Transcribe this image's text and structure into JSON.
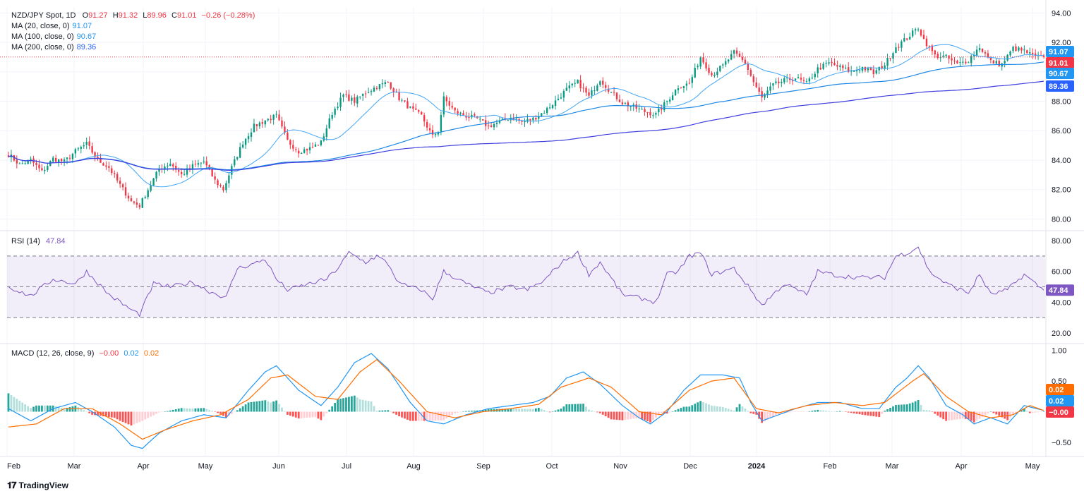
{
  "header": {
    "symbol": "NZD/JPY Spot, 1D",
    "o_label": "O",
    "o": "91.27",
    "h_label": "H",
    "h": "91.32",
    "l_label": "L",
    "l": "89.96",
    "c_label": "C",
    "c": "91.01",
    "change": "−0.26 (−0.28%)"
  },
  "ma_legend": [
    {
      "label": "MA (20, close, 0)",
      "value": "91.07",
      "color": "#2196f3"
    },
    {
      "label": "MA (100, close, 0)",
      "value": "90.67",
      "color": "#2196f3"
    },
    {
      "label": "MA (200, close, 0)",
      "value": "89.36",
      "color": "#2962ff"
    }
  ],
  "rsi_legend": {
    "label": "RSI (14)",
    "value": "47.84",
    "color": "#7e57c2"
  },
  "macd_legend": {
    "label": "MACD (12, 26, close, 9)",
    "hist": "−0.00",
    "macd": "0.02",
    "signal": "0.02",
    "hist_color": "#f23645",
    "macd_color": "#2196f3",
    "signal_color": "#ff6d00"
  },
  "branding": {
    "name": "TradingView"
  },
  "colors": {
    "up": "#089981",
    "down": "#f23645",
    "ma20": "#42a5f5",
    "ma100": "#1e88e5",
    "ma200": "#3f3fe0",
    "rsi": "#7e57c2",
    "macd": "#2196f3",
    "signal": "#ff6d00"
  },
  "chart_data": [
    {
      "type": "candlestick",
      "title": "NZD/JPY Spot, 1D",
      "x_ticks": [
        "Feb",
        "Mar",
        "Apr",
        "May",
        "Jun",
        "Jul",
        "Aug",
        "Sep",
        "Oct",
        "Nov",
        "Dec",
        "2024",
        "Feb",
        "Mar",
        "Apr",
        "May"
      ],
      "y_ticks": [
        "80.00",
        "82.00",
        "84.00",
        "86.00",
        "88.00",
        "90.00",
        "92.00",
        "94.00"
      ],
      "ylim": [
        79.3,
        94.4
      ],
      "last_close": 91.01,
      "price_labels": [
        {
          "text": "91.07",
          "value": 91.07,
          "color": "#2196f3"
        },
        {
          "text": "91.01",
          "value": 91.01,
          "color": "#f23645"
        },
        {
          "text": "90.67",
          "value": 90.67,
          "color": "#2196f3"
        },
        {
          "text": "89.36",
          "value": 89.36,
          "color": "#2962ff"
        }
      ],
      "close_path": [
        [
          0,
          84.4
        ],
        [
          4,
          83.7
        ],
        [
          8,
          84.0
        ],
        [
          12,
          83.2
        ],
        [
          16,
          84.1
        ],
        [
          20,
          83.9
        ],
        [
          24,
          84.6
        ],
        [
          28,
          85.1
        ],
        [
          32,
          84.0
        ],
        [
          36,
          83.5
        ],
        [
          40,
          82.3
        ],
        [
          44,
          81.2
        ],
        [
          47,
          80.9
        ],
        [
          50,
          82.0
        ],
        [
          54,
          83.4
        ],
        [
          58,
          83.8
        ],
        [
          62,
          83.0
        ],
        [
          66,
          83.6
        ],
        [
          70,
          83.9
        ],
        [
          74,
          82.6
        ],
        [
          77,
          82.0
        ],
        [
          80,
          83.5
        ],
        [
          84,
          85.2
        ],
        [
          88,
          86.3
        ],
        [
          92,
          86.7
        ],
        [
          96,
          87.0
        ],
        [
          100,
          85.3
        ],
        [
          104,
          84.6
        ],
        [
          108,
          84.8
        ],
        [
          112,
          85.2
        ],
        [
          116,
          87.2
        ],
        [
          120,
          88.4
        ],
        [
          124,
          88.0
        ],
        [
          128,
          88.6
        ],
        [
          132,
          89.0
        ],
        [
          136,
          89.3
        ],
        [
          140,
          88.2
        ],
        [
          144,
          87.5
        ],
        [
          148,
          87.0
        ],
        [
          152,
          85.6
        ],
        [
          154,
          86.0
        ],
        [
          156,
          88.2
        ],
        [
          160,
          87.3
        ],
        [
          164,
          87.0
        ],
        [
          168,
          86.8
        ],
        [
          172,
          86.3
        ],
        [
          176,
          86.6
        ],
        [
          180,
          86.9
        ],
        [
          184,
          86.6
        ],
        [
          188,
          86.8
        ],
        [
          192,
          87.3
        ],
        [
          196,
          88.0
        ],
        [
          200,
          88.8
        ],
        [
          204,
          89.3
        ],
        [
          208,
          88.3
        ],
        [
          212,
          89.5
        ],
        [
          216,
          88.6
        ],
        [
          220,
          87.9
        ],
        [
          224,
          87.6
        ],
        [
          228,
          87.3
        ],
        [
          232,
          87.1
        ],
        [
          236,
          88.0
        ],
        [
          240,
          89.0
        ],
        [
          244,
          89.2
        ],
        [
          248,
          91.0
        ],
        [
          252,
          89.8
        ],
        [
          256,
          90.4
        ],
        [
          260,
          91.3
        ],
        [
          264,
          90.6
        ],
        [
          267,
          89.3
        ],
        [
          270,
          88.2
        ],
        [
          274,
          89.1
        ],
        [
          278,
          89.4
        ],
        [
          282,
          89.6
        ],
        [
          286,
          89.2
        ],
        [
          290,
          90.2
        ],
        [
          294,
          90.6
        ],
        [
          298,
          90.3
        ],
        [
          302,
          90.0
        ],
        [
          306,
          90.3
        ],
        [
          310,
          89.9
        ],
        [
          314,
          90.5
        ],
        [
          318,
          91.7
        ],
        [
          322,
          92.3
        ],
        [
          326,
          93.0
        ],
        [
          328,
          92.2
        ],
        [
          332,
          91.1
        ],
        [
          336,
          91.0
        ],
        [
          340,
          90.5
        ],
        [
          344,
          90.8
        ],
        [
          348,
          91.7
        ],
        [
          352,
          90.7
        ],
        [
          356,
          90.5
        ],
        [
          360,
          91.6
        ],
        [
          364,
          91.4
        ],
        [
          368,
          91.0
        ],
        [
          371,
          91.01
        ]
      ],
      "n_bars": 372
    },
    {
      "type": "line",
      "title": "RSI (14)",
      "y_ticks": [
        "20.00",
        "40.00",
        "60.00",
        "80.00"
      ],
      "ylim": [
        14,
        86
      ],
      "band": [
        30,
        70
      ],
      "midline": 50,
      "last_value": 47.84,
      "value_path": [
        [
          0,
          50
        ],
        [
          8,
          44
        ],
        [
          16,
          55
        ],
        [
          24,
          52
        ],
        [
          28,
          60
        ],
        [
          36,
          45
        ],
        [
          44,
          35
        ],
        [
          47,
          32
        ],
        [
          52,
          52
        ],
        [
          58,
          50
        ],
        [
          66,
          53
        ],
        [
          72,
          47
        ],
        [
          78,
          43
        ],
        [
          82,
          62
        ],
        [
          88,
          65
        ],
        [
          92,
          68
        ],
        [
          96,
          55
        ],
        [
          100,
          48
        ],
        [
          108,
          52
        ],
        [
          114,
          55
        ],
        [
          118,
          62
        ],
        [
          122,
          72
        ],
        [
          128,
          66
        ],
        [
          132,
          70
        ],
        [
          136,
          65
        ],
        [
          140,
          52
        ],
        [
          148,
          48
        ],
        [
          152,
          42
        ],
        [
          156,
          60
        ],
        [
          164,
          52
        ],
        [
          172,
          46
        ],
        [
          180,
          50
        ],
        [
          186,
          48
        ],
        [
          192,
          54
        ],
        [
          196,
          62
        ],
        [
          200,
          68
        ],
        [
          204,
          72
        ],
        [
          208,
          58
        ],
        [
          212,
          66
        ],
        [
          220,
          45
        ],
        [
          228,
          42
        ],
        [
          232,
          40
        ],
        [
          236,
          58
        ],
        [
          240,
          60
        ],
        [
          244,
          70
        ],
        [
          248,
          72
        ],
        [
          252,
          58
        ],
        [
          260,
          62
        ],
        [
          266,
          48
        ],
        [
          270,
          38
        ],
        [
          278,
          52
        ],
        [
          286,
          45
        ],
        [
          290,
          60
        ],
        [
          298,
          57
        ],
        [
          306,
          56
        ],
        [
          314,
          56
        ],
        [
          318,
          70
        ],
        [
          322,
          72
        ],
        [
          326,
          76
        ],
        [
          330,
          60
        ],
        [
          336,
          52
        ],
        [
          344,
          46
        ],
        [
          348,
          58
        ],
        [
          352,
          45
        ],
        [
          358,
          48
        ],
        [
          364,
          58
        ],
        [
          368,
          52
        ],
        [
          371,
          47.84
        ]
      ]
    },
    {
      "type": "bar+line",
      "title": "MACD (12, 26, close, 9)",
      "y_ticks": [
        "−0.50",
        "0.50",
        "1.00"
      ],
      "ylim": [
        -0.72,
        1.1
      ],
      "last_values": {
        "hist": -0.0,
        "macd": 0.02,
        "signal": 0.02
      },
      "macd_path": [
        [
          0,
          0.05
        ],
        [
          8,
          -0.15
        ],
        [
          16,
          0.05
        ],
        [
          24,
          0.15
        ],
        [
          30,
          0.0
        ],
        [
          38,
          -0.25
        ],
        [
          44,
          -0.55
        ],
        [
          48,
          -0.6
        ],
        [
          54,
          -0.35
        ],
        [
          62,
          -0.15
        ],
        [
          70,
          -0.05
        ],
        [
          78,
          -0.1
        ],
        [
          86,
          0.35
        ],
        [
          92,
          0.65
        ],
        [
          96,
          0.75
        ],
        [
          104,
          0.35
        ],
        [
          112,
          0.1
        ],
        [
          118,
          0.4
        ],
        [
          124,
          0.8
        ],
        [
          130,
          0.95
        ],
        [
          136,
          0.7
        ],
        [
          144,
          0.15
        ],
        [
          150,
          -0.15
        ],
        [
          156,
          -0.2
        ],
        [
          164,
          -0.05
        ],
        [
          172,
          0.05
        ],
        [
          180,
          0.1
        ],
        [
          188,
          0.15
        ],
        [
          194,
          0.25
        ],
        [
          200,
          0.55
        ],
        [
          206,
          0.65
        ],
        [
          212,
          0.45
        ],
        [
          220,
          0.1
        ],
        [
          226,
          -0.1
        ],
        [
          230,
          -0.2
        ],
        [
          236,
          0.0
        ],
        [
          242,
          0.35
        ],
        [
          248,
          0.6
        ],
        [
          256,
          0.6
        ],
        [
          262,
          0.55
        ],
        [
          266,
          0.15
        ],
        [
          270,
          -0.15
        ],
        [
          276,
          -0.05
        ],
        [
          282,
          0.05
        ],
        [
          290,
          0.15
        ],
        [
          298,
          0.15
        ],
        [
          306,
          0.05
        ],
        [
          312,
          0.05
        ],
        [
          318,
          0.4
        ],
        [
          322,
          0.55
        ],
        [
          326,
          0.75
        ],
        [
          330,
          0.55
        ],
        [
          336,
          0.1
        ],
        [
          342,
          -0.05
        ],
        [
          346,
          -0.2
        ],
        [
          352,
          -0.1
        ],
        [
          358,
          -0.2
        ],
        [
          364,
          0.1
        ],
        [
          371,
          0.02
        ]
      ],
      "signal_path": [
        [
          0,
          -0.25
        ],
        [
          10,
          -0.2
        ],
        [
          20,
          0.05
        ],
        [
          30,
          0.05
        ],
        [
          40,
          -0.2
        ],
        [
          48,
          -0.45
        ],
        [
          56,
          -0.3
        ],
        [
          66,
          -0.15
        ],
        [
          76,
          -0.05
        ],
        [
          86,
          0.2
        ],
        [
          94,
          0.55
        ],
        [
          100,
          0.6
        ],
        [
          110,
          0.25
        ],
        [
          118,
          0.2
        ],
        [
          126,
          0.65
        ],
        [
          132,
          0.85
        ],
        [
          140,
          0.5
        ],
        [
          150,
          0.0
        ],
        [
          160,
          -0.1
        ],
        [
          170,
          0.0
        ],
        [
          180,
          0.05
        ],
        [
          190,
          0.12
        ],
        [
          198,
          0.4
        ],
        [
          208,
          0.55
        ],
        [
          216,
          0.4
        ],
        [
          226,
          0.0
        ],
        [
          234,
          -0.05
        ],
        [
          244,
          0.35
        ],
        [
          252,
          0.5
        ],
        [
          260,
          0.55
        ],
        [
          268,
          0.05
        ],
        [
          276,
          -0.02
        ],
        [
          286,
          0.1
        ],
        [
          296,
          0.15
        ],
        [
          306,
          0.1
        ],
        [
          314,
          0.15
        ],
        [
          324,
          0.5
        ],
        [
          328,
          0.62
        ],
        [
          336,
          0.25
        ],
        [
          344,
          0.0
        ],
        [
          352,
          -0.1
        ],
        [
          360,
          -0.05
        ],
        [
          366,
          0.1
        ],
        [
          371,
          0.02
        ]
      ]
    }
  ]
}
